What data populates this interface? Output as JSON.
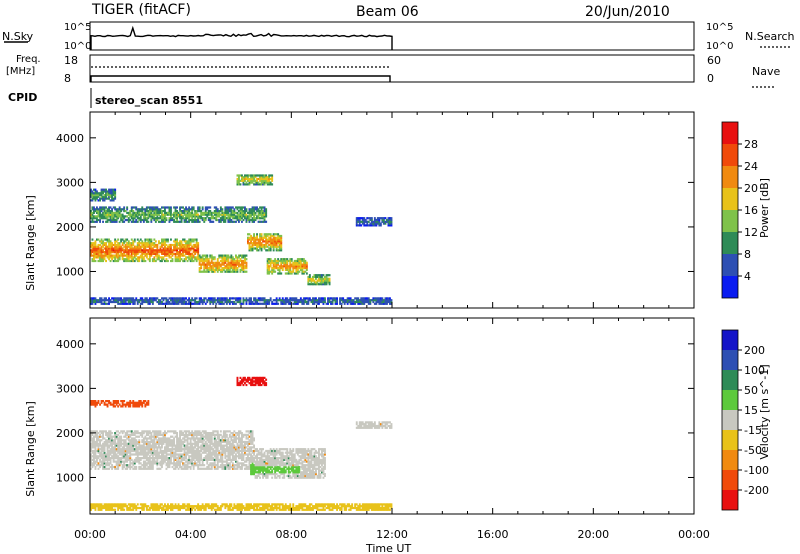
{
  "header": {
    "radar": "TIGER (fitACF)",
    "beam": "Beam 06",
    "date": "20/Jun/2010"
  },
  "small_panels": {
    "nsky_label": "N.Sky",
    "nsearch_label": "N.Search",
    "noise_ticks": [
      "10^5",
      "10^0"
    ],
    "freq_label_1": "Freq.",
    "freq_label_2": "[MHz]",
    "freq_ticks": [
      "18",
      "8"
    ],
    "nave_label": "Nave",
    "nave_ticks": [
      "60",
      "0"
    ],
    "cpid_label": "CPID",
    "cpid_value": "stereo_scan 8551"
  },
  "colors": {
    "axis": "#000000",
    "power_scale": [
      "#0a1cf0",
      "#2d4fb3",
      "#2e8b57",
      "#7fc24a",
      "#e8c21a",
      "#f08a10",
      "#f04a0a",
      "#e81010"
    ],
    "velocity_scale": [
      "#e81010",
      "#f04a0a",
      "#f08a10",
      "#e8c21a",
      "#c8c8c0",
      "#5dc93c",
      "#2e8b57",
      "#2d4fb3",
      "#1414c8"
    ]
  },
  "chart_data": [
    {
      "type": "heatmap",
      "panel": "power",
      "xlabel": "Time UT",
      "ylabel": "Slant Range [km]",
      "x_ticks": [
        "00:00",
        "04:00",
        "08:00",
        "12:00",
        "16:00",
        "20:00",
        "00:00"
      ],
      "y_ticks": [
        "1000",
        "2000",
        "3000",
        "4000"
      ],
      "xlim": [
        0,
        24
      ],
      "ylim": [
        180,
        4580
      ],
      "data_end_hour": 12,
      "colorbar_label": "Power [dB]",
      "colorbar_ticks": [
        "28",
        "24",
        "20",
        "16",
        "12",
        "8",
        "4"
      ],
      "features": [
        {
          "t0": 0.0,
          "t1": 4.3,
          "r_center": 1450,
          "r_width": 520,
          "level": 26
        },
        {
          "t0": 4.3,
          "t1": 6.2,
          "r_center": 1150,
          "r_width": 420,
          "level": 24
        },
        {
          "t0": 6.2,
          "t1": 7.6,
          "r_center": 1650,
          "r_width": 420,
          "level": 24
        },
        {
          "t0": 7.0,
          "t1": 8.6,
          "r_center": 1100,
          "r_width": 380,
          "level": 22
        },
        {
          "t0": 8.6,
          "t1": 9.5,
          "r_center": 800,
          "r_width": 250,
          "level": 18
        },
        {
          "t0": 0.0,
          "t1": 7.0,
          "r_center": 2250,
          "r_width": 380,
          "level": 14
        },
        {
          "t0": 0.0,
          "t1": 1.0,
          "r_center": 2700,
          "r_width": 250,
          "level": 12
        },
        {
          "t0": 5.8,
          "t1": 7.2,
          "r_center": 3050,
          "r_width": 260,
          "level": 18
        },
        {
          "t0": 10.5,
          "t1": 12.0,
          "r_center": 2100,
          "r_width": 200,
          "level": 8
        },
        {
          "t0": 0.0,
          "t1": 12.0,
          "r_center": 320,
          "r_width": 180,
          "level": 8
        }
      ]
    },
    {
      "type": "heatmap",
      "panel": "velocity",
      "xlabel": "Time UT",
      "ylabel": "Slant Range [km]",
      "x_ticks": [
        "00:00",
        "04:00",
        "08:00",
        "12:00",
        "16:00",
        "20:00",
        "00:00"
      ],
      "y_ticks": [
        "1000",
        "2000",
        "3000",
        "4000"
      ],
      "xlim": [
        0,
        24
      ],
      "ylim": [
        180,
        4580
      ],
      "data_end_hour": 12,
      "colorbar_label": "Velocity [m s^-1]",
      "colorbar_ticks": [
        "200",
        "100",
        "50",
        "15",
        "-15",
        "-50",
        "-100",
        "-200"
      ],
      "features": [
        {
          "t0": 0.0,
          "t1": 6.5,
          "r_center": 1600,
          "r_width": 900,
          "level": 0
        },
        {
          "t0": 6.5,
          "t1": 9.3,
          "r_center": 1300,
          "r_width": 650,
          "level": 0
        },
        {
          "t0": 6.3,
          "t1": 8.3,
          "r_center": 1200,
          "r_width": 350,
          "level": 30
        },
        {
          "t0": 5.8,
          "t1": 7.0,
          "r_center": 3150,
          "r_width": 220,
          "level": -220
        },
        {
          "t0": 0.0,
          "t1": 2.3,
          "r_center": 2650,
          "r_width": 150,
          "level": -150
        },
        {
          "t0": 10.5,
          "t1": 12.0,
          "r_center": 2150,
          "r_width": 180,
          "level": 0
        },
        {
          "t0": 0.0,
          "t1": 12.0,
          "r_center": 320,
          "r_width": 180,
          "level": -30
        }
      ]
    }
  ]
}
